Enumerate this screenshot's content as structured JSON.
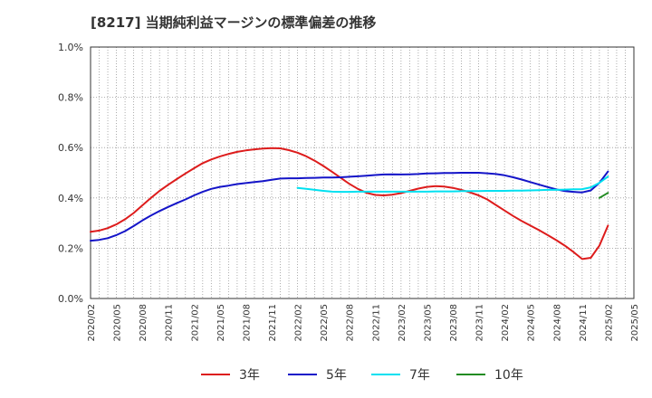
{
  "chart_data": {
    "type": "line",
    "title": "[8217]  当期純利益マージンの標準偏差の推移",
    "xlabel": "",
    "ylabel": "",
    "ylim": [
      0,
      1.0
    ],
    "y_ticks": [
      "0.0%",
      "0.2%",
      "0.4%",
      "0.6%",
      "0.8%",
      "1.0%"
    ],
    "x_range": [
      "2020/02",
      "2025/05"
    ],
    "x_ticks": [
      "2020/02",
      "2020/05",
      "2020/08",
      "2020/11",
      "2021/02",
      "2021/05",
      "2021/08",
      "2021/11",
      "2022/02",
      "2022/05",
      "2022/08",
      "2022/11",
      "2023/02",
      "2023/05",
      "2023/08",
      "2023/11",
      "2024/02",
      "2024/05",
      "2024/08",
      "2024/11",
      "2025/02",
      "2025/05"
    ],
    "grid": true,
    "legend_position": "bottom",
    "series": [
      {
        "name": "3年",
        "color": "#dd1c1c",
        "points": [
          [
            "2020/02",
            0.265
          ],
          [
            "2020/03",
            0.27
          ],
          [
            "2020/04",
            0.28
          ],
          [
            "2020/05",
            0.295
          ],
          [
            "2020/06",
            0.315
          ],
          [
            "2020/07",
            0.34
          ],
          [
            "2020/08",
            0.37
          ],
          [
            "2020/09",
            0.4
          ],
          [
            "2020/10",
            0.428
          ],
          [
            "2020/11",
            0.452
          ],
          [
            "2020/12",
            0.475
          ],
          [
            "2021/01",
            0.497
          ],
          [
            "2021/02",
            0.518
          ],
          [
            "2021/03",
            0.538
          ],
          [
            "2021/04",
            0.553
          ],
          [
            "2021/05",
            0.565
          ],
          [
            "2021/06",
            0.575
          ],
          [
            "2021/07",
            0.583
          ],
          [
            "2021/08",
            0.589
          ],
          [
            "2021/09",
            0.593
          ],
          [
            "2021/10",
            0.596
          ],
          [
            "2021/11",
            0.598
          ],
          [
            "2021/12",
            0.597
          ],
          [
            "2022/01",
            0.59
          ],
          [
            "2022/02",
            0.58
          ],
          [
            "2022/03",
            0.566
          ],
          [
            "2022/04",
            0.548
          ],
          [
            "2022/05",
            0.527
          ],
          [
            "2022/06",
            0.504
          ],
          [
            "2022/07",
            0.48
          ],
          [
            "2022/08",
            0.456
          ],
          [
            "2022/09",
            0.436
          ],
          [
            "2022/10",
            0.42
          ],
          [
            "2022/11",
            0.412
          ],
          [
            "2022/12",
            0.41
          ],
          [
            "2023/01",
            0.413
          ],
          [
            "2023/02",
            0.419
          ],
          [
            "2023/03",
            0.428
          ],
          [
            "2023/04",
            0.437
          ],
          [
            "2023/05",
            0.444
          ],
          [
            "2023/06",
            0.447
          ],
          [
            "2023/07",
            0.445
          ],
          [
            "2023/08",
            0.44
          ],
          [
            "2023/09",
            0.432
          ],
          [
            "2023/10",
            0.422
          ],
          [
            "2023/11",
            0.41
          ],
          [
            "2023/12",
            0.394
          ],
          [
            "2024/01",
            0.372
          ],
          [
            "2024/02",
            0.35
          ],
          [
            "2024/03",
            0.328
          ],
          [
            "2024/04",
            0.308
          ],
          [
            "2024/05",
            0.29
          ],
          [
            "2024/06",
            0.272
          ],
          [
            "2024/07",
            0.252
          ],
          [
            "2024/08",
            0.232
          ],
          [
            "2024/09",
            0.21
          ],
          [
            "2024/10",
            0.185
          ],
          [
            "2024/11",
            0.157
          ],
          [
            "2024/12",
            0.162
          ],
          [
            "2025/01",
            0.21
          ],
          [
            "2025/02",
            0.29
          ]
        ]
      },
      {
        "name": "5年",
        "color": "#1414c8",
        "points": [
          [
            "2020/02",
            0.23
          ],
          [
            "2020/03",
            0.233
          ],
          [
            "2020/04",
            0.24
          ],
          [
            "2020/05",
            0.252
          ],
          [
            "2020/06",
            0.268
          ],
          [
            "2020/07",
            0.288
          ],
          [
            "2020/08",
            0.31
          ],
          [
            "2020/09",
            0.33
          ],
          [
            "2020/10",
            0.348
          ],
          [
            "2020/11",
            0.364
          ],
          [
            "2020/12",
            0.379
          ],
          [
            "2021/01",
            0.394
          ],
          [
            "2021/02",
            0.41
          ],
          [
            "2021/03",
            0.424
          ],
          [
            "2021/04",
            0.436
          ],
          [
            "2021/05",
            0.444
          ],
          [
            "2021/06",
            0.449
          ],
          [
            "2021/07",
            0.455
          ],
          [
            "2021/08",
            0.459
          ],
          [
            "2021/09",
            0.463
          ],
          [
            "2021/10",
            0.467
          ],
          [
            "2021/11",
            0.472
          ],
          [
            "2021/12",
            0.477
          ],
          [
            "2022/01",
            0.478
          ],
          [
            "2022/02",
            0.478
          ],
          [
            "2022/03",
            0.479
          ],
          [
            "2022/04",
            0.48
          ],
          [
            "2022/05",
            0.481
          ],
          [
            "2022/06",
            0.481
          ],
          [
            "2022/07",
            0.482
          ],
          [
            "2022/08",
            0.484
          ],
          [
            "2022/09",
            0.486
          ],
          [
            "2022/10",
            0.488
          ],
          [
            "2022/11",
            0.491
          ],
          [
            "2022/12",
            0.493
          ],
          [
            "2023/01",
            0.494
          ],
          [
            "2023/02",
            0.493
          ],
          [
            "2023/03",
            0.494
          ],
          [
            "2023/04",
            0.495
          ],
          [
            "2023/05",
            0.497
          ],
          [
            "2023/06",
            0.498
          ],
          [
            "2023/07",
            0.499
          ],
          [
            "2023/08",
            0.499
          ],
          [
            "2023/09",
            0.5
          ],
          [
            "2023/10",
            0.5
          ],
          [
            "2023/11",
            0.5
          ],
          [
            "2023/12",
            0.498
          ],
          [
            "2024/01",
            0.495
          ],
          [
            "2024/02",
            0.49
          ],
          [
            "2024/03",
            0.482
          ],
          [
            "2024/04",
            0.473
          ],
          [
            "2024/05",
            0.463
          ],
          [
            "2024/06",
            0.453
          ],
          [
            "2024/07",
            0.443
          ],
          [
            "2024/08",
            0.434
          ],
          [
            "2024/09",
            0.427
          ],
          [
            "2024/10",
            0.424
          ],
          [
            "2024/11",
            0.422
          ],
          [
            "2024/12",
            0.43
          ],
          [
            "2025/01",
            0.46
          ],
          [
            "2025/02",
            0.505
          ]
        ]
      },
      {
        "name": "7年",
        "color": "#00e0f0",
        "points": [
          [
            "2022/02",
            0.44
          ],
          [
            "2022/03",
            0.436
          ],
          [
            "2022/04",
            0.432
          ],
          [
            "2022/05",
            0.428
          ],
          [
            "2022/06",
            0.425
          ],
          [
            "2022/07",
            0.424
          ],
          [
            "2022/08",
            0.424
          ],
          [
            "2022/09",
            0.425
          ],
          [
            "2022/10",
            0.425
          ],
          [
            "2022/11",
            0.425
          ],
          [
            "2022/12",
            0.425
          ],
          [
            "2023/01",
            0.425
          ],
          [
            "2023/02",
            0.425
          ],
          [
            "2023/03",
            0.425
          ],
          [
            "2023/04",
            0.425
          ],
          [
            "2023/05",
            0.425
          ],
          [
            "2023/06",
            0.426
          ],
          [
            "2023/07",
            0.426
          ],
          [
            "2023/08",
            0.426
          ],
          [
            "2023/09",
            0.427
          ],
          [
            "2023/10",
            0.427
          ],
          [
            "2023/11",
            0.427
          ],
          [
            "2023/12",
            0.428
          ],
          [
            "2024/01",
            0.428
          ],
          [
            "2024/02",
            0.428
          ],
          [
            "2024/03",
            0.429
          ],
          [
            "2024/04",
            0.429
          ],
          [
            "2024/05",
            0.43
          ],
          [
            "2024/06",
            0.431
          ],
          [
            "2024/07",
            0.432
          ],
          [
            "2024/08",
            0.432
          ],
          [
            "2024/09",
            0.433
          ],
          [
            "2024/10",
            0.434
          ],
          [
            "2024/11",
            0.435
          ],
          [
            "2024/12",
            0.442
          ],
          [
            "2025/01",
            0.46
          ],
          [
            "2025/02",
            0.485
          ]
        ]
      },
      {
        "name": "10年",
        "color": "#228b22",
        "points": [
          [
            "2025/01",
            0.4
          ],
          [
            "2025/02",
            0.42
          ]
        ]
      }
    ]
  }
}
